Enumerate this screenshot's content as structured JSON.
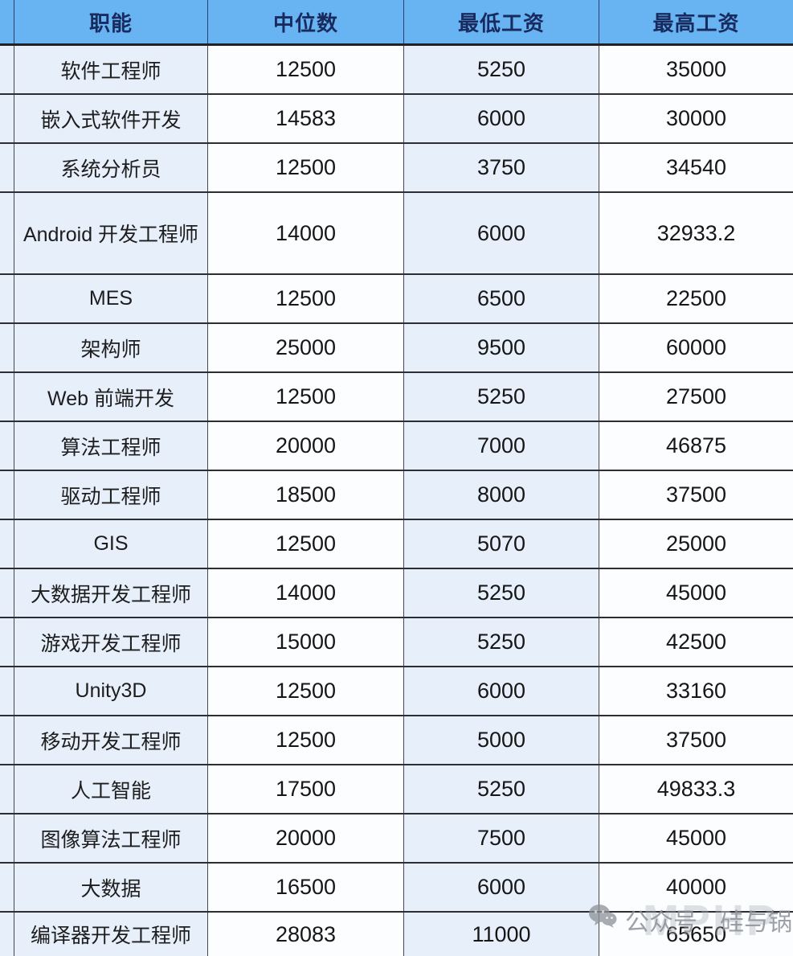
{
  "chart_data": {
    "type": "table",
    "title": "",
    "columns": [
      "职能",
      "中位数",
      "最低工资",
      "最高工资"
    ],
    "rows": [
      [
        "软件工程师",
        12500,
        5250,
        35000
      ],
      [
        "嵌入式软件开发",
        14583,
        6000,
        30000
      ],
      [
        "系统分析员",
        12500,
        3750,
        34540
      ],
      [
        "Android 开发工程师",
        14000,
        6000,
        32933.2
      ],
      [
        "MES",
        12500,
        6500,
        22500
      ],
      [
        "架构师",
        25000,
        9500,
        60000
      ],
      [
        "Web 前端开发",
        12500,
        5250,
        27500
      ],
      [
        "算法工程师",
        20000,
        7000,
        46875
      ],
      [
        "驱动工程师",
        18500,
        8000,
        37500
      ],
      [
        "GIS",
        12500,
        5070,
        25000
      ],
      [
        "大数据开发工程师",
        14000,
        5250,
        45000
      ],
      [
        "游戏开发工程师",
        15000,
        5250,
        42500
      ],
      [
        "Unity3D",
        12500,
        6000,
        33160
      ],
      [
        "移动开发工程师",
        12500,
        5000,
        37500
      ],
      [
        "人工智能",
        17500,
        5250,
        49833.3
      ],
      [
        "图像算法工程师",
        20000,
        7500,
        45000
      ],
      [
        "大数据",
        16500,
        6000,
        40000
      ],
      [
        "编译器开发工程师",
        28083,
        11000,
        65650
      ]
    ],
    "layout": {
      "grid": true,
      "header_position": "top"
    }
  },
  "watermark": {
    "icon": "wechat-icon",
    "prefix": "公众号",
    "account": "硅与锅",
    "overlay_text": "MPHP"
  },
  "colors": {
    "header_bg": "#68b4f2",
    "header_text": "#182a5e",
    "cell_light_blue": "#e6effa",
    "cell_white": "#fcfdfe",
    "border_dark": "#2d2e34",
    "body_text": "#1d1d1d",
    "watermark_gray": "#8c9198"
  }
}
